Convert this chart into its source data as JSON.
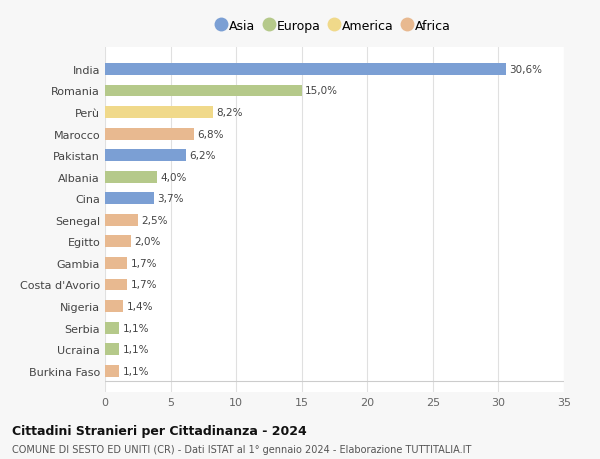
{
  "countries": [
    "India",
    "Romania",
    "Perù",
    "Marocco",
    "Pakistan",
    "Albania",
    "Cina",
    "Senegal",
    "Egitto",
    "Gambia",
    "Costa d'Avorio",
    "Nigeria",
    "Serbia",
    "Ucraina",
    "Burkina Faso"
  ],
  "values": [
    30.6,
    15.0,
    8.2,
    6.8,
    6.2,
    4.0,
    3.7,
    2.5,
    2.0,
    1.7,
    1.7,
    1.4,
    1.1,
    1.1,
    1.1
  ],
  "labels": [
    "30,6%",
    "15,0%",
    "8,2%",
    "6,8%",
    "6,2%",
    "4,0%",
    "3,7%",
    "2,5%",
    "2,0%",
    "1,7%",
    "1,7%",
    "1,4%",
    "1,1%",
    "1,1%",
    "1,1%"
  ],
  "continents": [
    "Asia",
    "Europa",
    "America",
    "Africa",
    "Asia",
    "Europa",
    "Asia",
    "Africa",
    "Africa",
    "Africa",
    "Africa",
    "Africa",
    "Europa",
    "Europa",
    "Africa"
  ],
  "colors": {
    "Asia": "#7b9fd4",
    "Europa": "#b5c98a",
    "America": "#f0d98a",
    "Africa": "#e8b990"
  },
  "legend_order": [
    "Asia",
    "Europa",
    "America",
    "Africa"
  ],
  "title": "Cittadini Stranieri per Cittadinanza - 2024",
  "subtitle": "COMUNE DI SESTO ED UNITI (CR) - Dati ISTAT al 1° gennaio 2024 - Elaborazione TUTTITALIA.IT",
  "xlim": [
    0,
    35
  ],
  "xticks": [
    0,
    5,
    10,
    15,
    20,
    25,
    30,
    35
  ],
  "background_color": "#f7f7f7",
  "plot_bg_color": "#ffffff",
  "grid_color": "#e0e0e0"
}
